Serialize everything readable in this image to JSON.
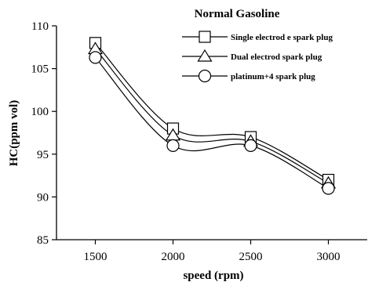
{
  "chart_data": {
    "type": "line",
    "title": "Normal  Gasoline",
    "xlabel": "speed (rpm)",
    "ylabel": "HC(ppm vol)",
    "categories": [
      "1500",
      "2000",
      "2500",
      "3000"
    ],
    "x": [
      1500,
      2000,
      2500,
      3000
    ],
    "ylim": [
      85,
      110
    ],
    "yticks": [
      85,
      90,
      95,
      100,
      105,
      110
    ],
    "xlim": [
      1250,
      3250
    ],
    "grid": false,
    "legend_position": "top-right",
    "series": [
      {
        "name": "Single electrod e spark plug",
        "marker": "square",
        "values": [
          108,
          98,
          97,
          92
        ]
      },
      {
        "name": "Dual electrod spark plug",
        "marker": "triangle",
        "values": [
          107.3,
          97.2,
          96.5,
          91.6
        ]
      },
      {
        "name": "platinum+4 spark plug",
        "marker": "circle",
        "values": [
          106.3,
          96,
          96,
          91
        ]
      }
    ]
  }
}
